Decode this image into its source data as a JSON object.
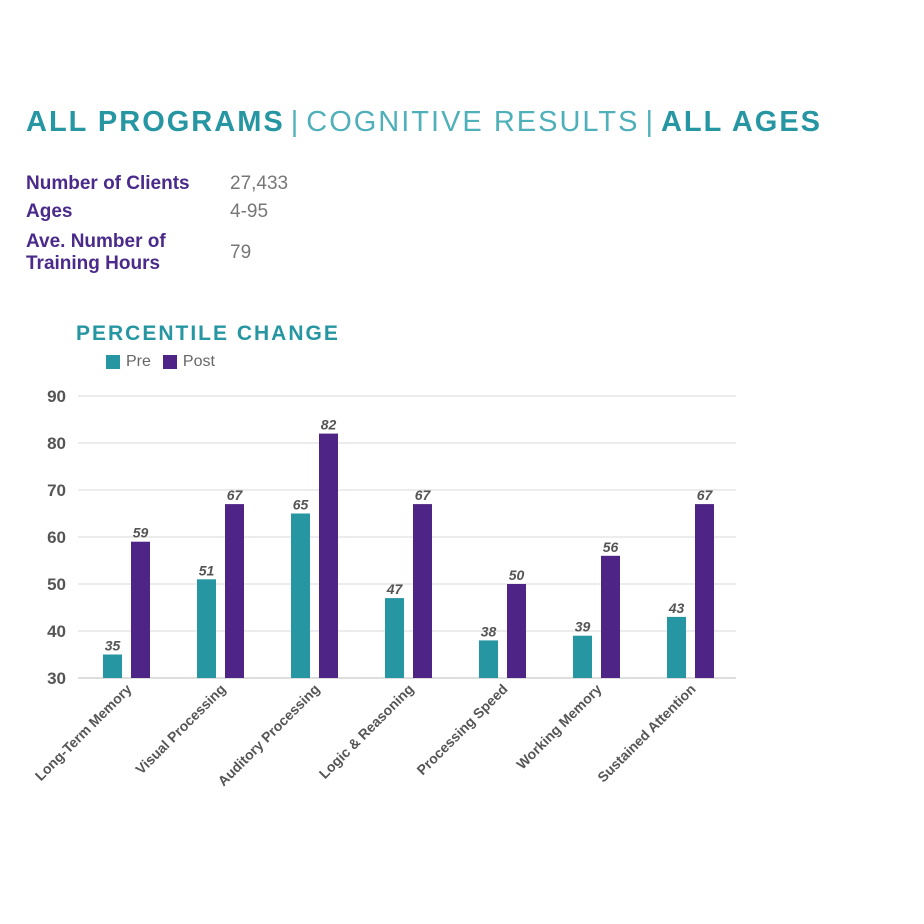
{
  "header": {
    "part1": "ALL PROGRAMS",
    "sep1": "|",
    "part2": "COGNITIVE RESULTS",
    "sep2": "|",
    "part3": "ALL AGES"
  },
  "stats": [
    {
      "label": "Number of Clients",
      "value": "27,433"
    },
    {
      "label": "Ages",
      "value": "4-95"
    },
    {
      "label": "Ave. Number of Training Hours",
      "value": "79"
    }
  ],
  "colors": {
    "pre": "#2696a2",
    "post": "#4e2587",
    "heading": "#2696a2",
    "stat_label": "#4a2a8a"
  },
  "chart_data": {
    "type": "bar",
    "title": "PERCENTILE CHANGE",
    "categories": [
      "Long-Term Memory",
      "Visual Processing",
      "Auditory Processing",
      "Logic & Reasoning",
      "Processing Speed",
      "Working Memory",
      "Sustained Attention"
    ],
    "series": [
      {
        "name": "Pre",
        "values": [
          35,
          51,
          65,
          47,
          38,
          39,
          43
        ]
      },
      {
        "name": "Post",
        "values": [
          59,
          67,
          82,
          67,
          50,
          56,
          67
        ]
      }
    ],
    "ylim": [
      30,
      90
    ],
    "yticks": [
      30,
      40,
      50,
      60,
      70,
      80,
      90
    ],
    "grid": true,
    "legend": "top-left",
    "data_labels": true
  }
}
